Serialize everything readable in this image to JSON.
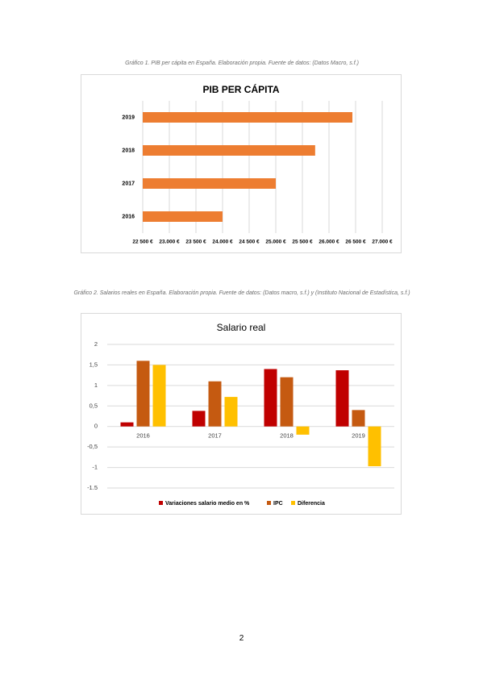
{
  "captions": [
    "Gráfico 1. PIB per cápita en España. Elaboración propia. Fuente de datos: (Datos Macro, s.f.)",
    "Gráfico 2. Salarios reales en España. Elaboración propia. Fuente de datos: (Datos macro, s.f.) y (Instituto Nacional de Estadística, s.f.)"
  ],
  "chart_data": [
    {
      "type": "hbar",
      "title": "PIB PER CÁPITA",
      "categories": [
        "2016",
        "2017",
        "2018",
        "2019"
      ],
      "values": [
        24000,
        25000,
        25740,
        26440
      ],
      "color": "#ed7d31",
      "xlim": [
        22500,
        27000
      ],
      "xticks": [
        {
          "value": 22500,
          "label": "22 500 €"
        },
        {
          "value": 23000,
          "label": "23.000 €"
        },
        {
          "value": 23500,
          "label": "23 500 €"
        },
        {
          "value": 24000,
          "label": "24.000 €"
        },
        {
          "value": 24500,
          "label": "24 500 €"
        },
        {
          "value": 25000,
          "label": "25.000 €"
        },
        {
          "value": 25500,
          "label": "25 500 €"
        },
        {
          "value": 26000,
          "label": "26.000 €"
        },
        {
          "value": 26500,
          "label": "26 500 €"
        },
        {
          "value": 27000,
          "label": "27.000 €"
        }
      ],
      "grid": true
    },
    {
      "type": "grouped_bar",
      "title": "Salario real",
      "categories": [
        "2016",
        "2017",
        "2018",
        "2019"
      ],
      "series": [
        {
          "name": "Variaciones salario medio en %",
          "color": "#c00000",
          "values": [
            0.1,
            0.38,
            1.4,
            1.37
          ]
        },
        {
          "name": "IPC",
          "color": "#c55a11",
          "values": [
            1.6,
            1.1,
            1.2,
            0.4
          ]
        },
        {
          "name": "Diferencia",
          "color": "#ffc000",
          "values": [
            1.5,
            0.72,
            -0.2,
            -0.97
          ]
        }
      ],
      "ylim": [
        -1.5,
        2
      ],
      "yticks": [
        -1.5,
        -1,
        {
          "value": -0.5,
          "label": "-0,5"
        },
        0,
        {
          "value": 0.5,
          "label": "0,5"
        },
        1,
        {
          "value": 1.5,
          "label": "1,5"
        },
        2
      ],
      "grid": true,
      "legend": "bottom"
    }
  ],
  "page_number": "2"
}
